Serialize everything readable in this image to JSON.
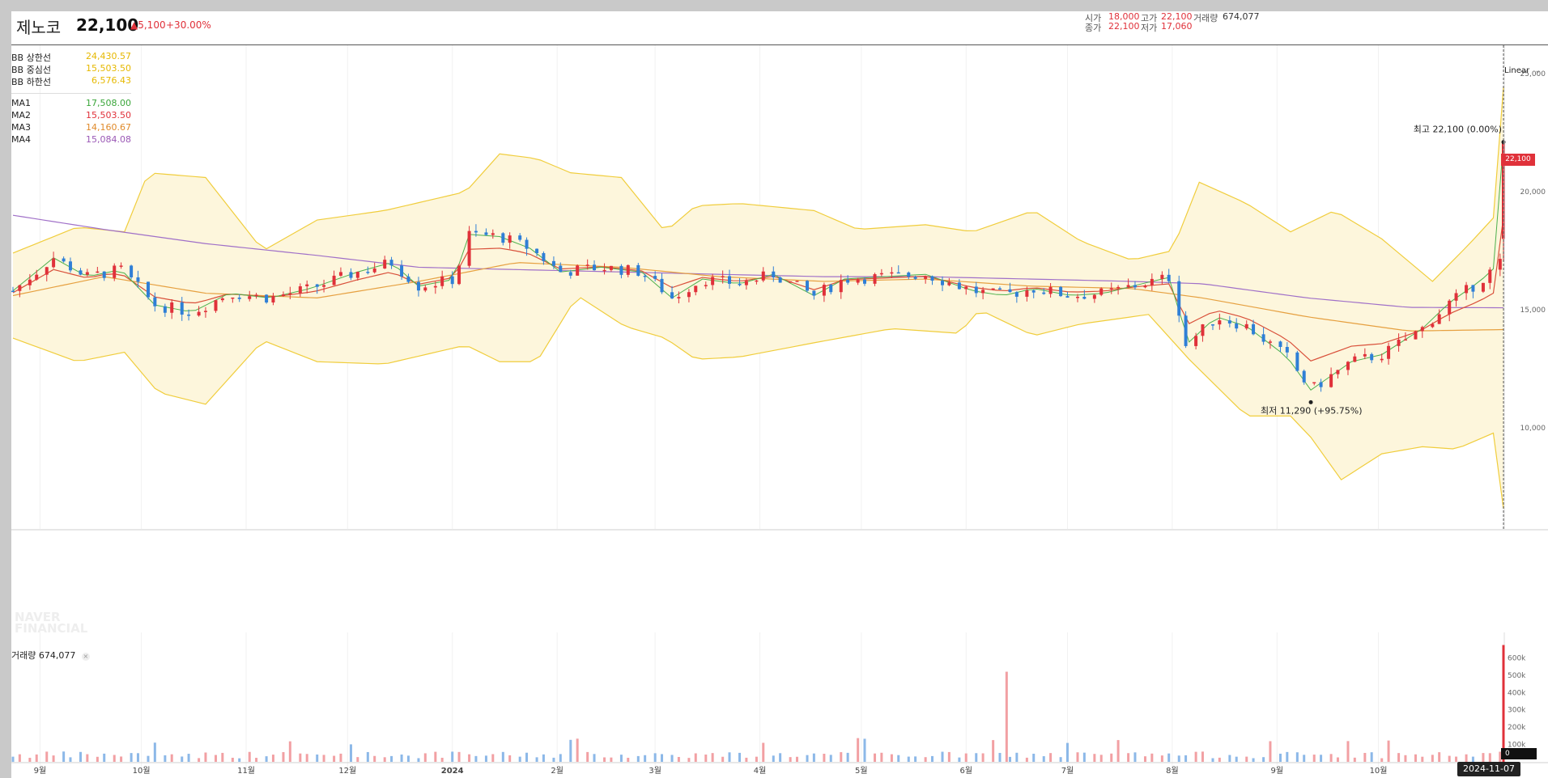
{
  "stock": {
    "name": "제노코",
    "price": "22,100",
    "change": "5,100",
    "change_pct": "+30.00%",
    "up_color": "#e0313a"
  },
  "ohlc": {
    "open_label": "시가",
    "open": "18,000",
    "high_label": "고가",
    "high": "22,100",
    "volume_label": "거래량",
    "volume": "674,077",
    "close_label": "종가",
    "close": "22,100",
    "low_label": "저가",
    "low": "17,060"
  },
  "indicators": {
    "bb_upper": {
      "label": "BB 상한선",
      "value": "24,430.57",
      "color": "#e6b800"
    },
    "bb_mid": {
      "label": "BB 중심선",
      "value": "15,503.50",
      "color": "#e6b800"
    },
    "bb_lower": {
      "label": "BB 하한선",
      "value": "6,576.43",
      "color": "#e6b800"
    },
    "ma1": {
      "label": "MA1",
      "value": "17,508.00",
      "color": "#3aa63a"
    },
    "ma2": {
      "label": "MA2",
      "value": "15,503.50",
      "color": "#e0313a"
    },
    "ma3": {
      "label": "MA3",
      "value": "14,160.67",
      "color": "#e08a2a"
    },
    "ma4": {
      "label": "MA4",
      "value": "15,084.08",
      "color": "#9b59b6"
    }
  },
  "scale_mode": "Linear",
  "volume_panel": {
    "label": "거래량",
    "value": "674,077"
  },
  "watermark": "NAVER FINANCIAL",
  "current_price_badge": "22,100",
  "volume_zero_badge": "0",
  "crosshair_date": "2024-11-07",
  "chart_data": {
    "type": "candlestick",
    "price_axis": {
      "ticks": [
        10000,
        15000,
        20000,
        25000
      ],
      "tick_labels": [
        "10,000",
        "15,000",
        "20,000",
        "25,000"
      ],
      "ylim": [
        6500,
        26500
      ]
    },
    "volume_axis": {
      "ticks": [
        100000,
        200000,
        300000,
        400000,
        500000,
        600000
      ],
      "tick_labels": [
        "100k",
        "200k",
        "300k",
        "400k",
        "500k",
        "600k"
      ],
      "ylim": [
        0,
        700000
      ]
    },
    "x_axis_labels": [
      "9월",
      "10월",
      "11월",
      "12월",
      "2024",
      "2월",
      "3월",
      "4월",
      "5월",
      "6월",
      "7월",
      "8월",
      "9월",
      "10월"
    ],
    "annotations": {
      "high": {
        "label": "최고",
        "value": "22,100",
        "pct": "(0.00%)"
      },
      "low": {
        "label": "최저",
        "value": "11,290",
        "pct": "(+95.75%)"
      }
    },
    "series_summary": {
      "last_close": 22100,
      "last_open": 18000,
      "last_high": 22100,
      "last_low": 17060,
      "period_high": 22100,
      "period_low": 11290,
      "last_volume": 674077,
      "largest_prior_volume_spike": 520000
    },
    "close_path": [
      {
        "d": "2023-08-24",
        "c": 15800
      },
      {
        "d": "2023-09-05",
        "c": 17200
      },
      {
        "d": "2023-09-15",
        "c": 16400
      },
      {
        "d": "2023-09-25",
        "c": 16700
      },
      {
        "d": "2023-10-05",
        "c": 15200
      },
      {
        "d": "2023-10-16",
        "c": 14900
      },
      {
        "d": "2023-10-27",
        "c": 15700
      },
      {
        "d": "2023-11-08",
        "c": 15500
      },
      {
        "d": "2023-11-20",
        "c": 15900
      },
      {
        "d": "2023-12-04",
        "c": 16600
      },
      {
        "d": "2023-12-14",
        "c": 17000
      },
      {
        "d": "2023-12-22",
        "c": 16000
      },
      {
        "d": "2024-01-02",
        "c": 16300
      },
      {
        "d": "2024-01-05",
        "c": 18200
      },
      {
        "d": "2024-01-15",
        "c": 18100
      },
      {
        "d": "2024-01-24",
        "c": 17600
      },
      {
        "d": "2024-02-02",
        "c": 16600
      },
      {
        "d": "2024-02-14",
        "c": 16800
      },
      {
        "d": "2024-02-26",
        "c": 16600
      },
      {
        "d": "2024-03-06",
        "c": 15500
      },
      {
        "d": "2024-03-15",
        "c": 16300
      },
      {
        "d": "2024-03-26",
        "c": 16100
      },
      {
        "d": "2024-04-05",
        "c": 16500
      },
      {
        "d": "2024-04-17",
        "c": 15600
      },
      {
        "d": "2024-04-26",
        "c": 16300
      },
      {
        "d": "2024-05-08",
        "c": 16400
      },
      {
        "d": "2024-05-20",
        "c": 16500
      },
      {
        "d": "2024-06-03",
        "c": 15800
      },
      {
        "d": "2024-06-12",
        "c": 15600
      },
      {
        "d": "2024-06-21",
        "c": 15900
      },
      {
        "d": "2024-07-02",
        "c": 15600
      },
      {
        "d": "2024-07-12",
        "c": 15700
      },
      {
        "d": "2024-07-23",
        "c": 16100
      },
      {
        "d": "2024-08-01",
        "c": 16400
      },
      {
        "d": "2024-08-05",
        "c": 13500
      },
      {
        "d": "2024-08-14",
        "c": 14700
      },
      {
        "d": "2024-08-23",
        "c": 14300
      },
      {
        "d": "2024-09-04",
        "c": 13000
      },
      {
        "d": "2024-09-11",
        "c": 11600
      },
      {
        "d": "2024-09-23",
        "c": 12800
      },
      {
        "d": "2024-10-02",
        "c": 13100
      },
      {
        "d": "2024-10-14",
        "c": 14200
      },
      {
        "d": "2024-10-22",
        "c": 15300
      },
      {
        "d": "2024-10-31",
        "c": 16200
      },
      {
        "d": "2024-11-06",
        "c": 17000
      },
      {
        "d": "2024-11-07",
        "c": 22100
      }
    ],
    "bb_upper_path": [
      {
        "d": "2023-08-24",
        "v": 17400
      },
      {
        "d": "2023-09-12",
        "v": 18500
      },
      {
        "d": "2023-09-26",
        "v": 18300
      },
      {
        "d": "2023-10-03",
        "v": 20800
      },
      {
        "d": "2023-10-20",
        "v": 20600
      },
      {
        "d": "2023-11-06",
        "v": 17500
      },
      {
        "d": "2023-11-22",
        "v": 18800
      },
      {
        "d": "2023-12-12",
        "v": 19200
      },
      {
        "d": "2024-01-05",
        "v": 20000
      },
      {
        "d": "2024-01-15",
        "v": 21600
      },
      {
        "d": "2024-01-26",
        "v": 21400
      },
      {
        "d": "2024-02-05",
        "v": 20800
      },
      {
        "d": "2024-02-20",
        "v": 20600
      },
      {
        "d": "2024-03-04",
        "v": 18300
      },
      {
        "d": "2024-03-13",
        "v": 19400
      },
      {
        "d": "2024-03-26",
        "v": 19500
      },
      {
        "d": "2024-04-17",
        "v": 19200
      },
      {
        "d": "2024-04-30",
        "v": 18400
      },
      {
        "d": "2024-05-20",
        "v": 18600
      },
      {
        "d": "2024-06-03",
        "v": 18300
      },
      {
        "d": "2024-06-21",
        "v": 19200
      },
      {
        "d": "2024-07-05",
        "v": 17900
      },
      {
        "d": "2024-07-20",
        "v": 17100
      },
      {
        "d": "2024-08-01",
        "v": 17500
      },
      {
        "d": "2024-08-09",
        "v": 20400
      },
      {
        "d": "2024-08-23",
        "v": 19500
      },
      {
        "d": "2024-09-05",
        "v": 18300
      },
      {
        "d": "2024-09-18",
        "v": 19200
      },
      {
        "d": "2024-10-02",
        "v": 18000
      },
      {
        "d": "2024-10-17",
        "v": 16200
      },
      {
        "d": "2024-10-28",
        "v": 17800
      },
      {
        "d": "2024-11-06",
        "v": 19200
      },
      {
        "d": "2024-11-07",
        "v": 24430
      }
    ],
    "bb_lower_path": [
      {
        "d": "2023-08-24",
        "v": 13800
      },
      {
        "d": "2023-09-12",
        "v": 12800
      },
      {
        "d": "2023-09-26",
        "v": 13200
      },
      {
        "d": "2023-10-06",
        "v": 11500
      },
      {
        "d": "2023-10-20",
        "v": 11000
      },
      {
        "d": "2023-11-06",
        "v": 13700
      },
      {
        "d": "2023-11-22",
        "v": 12800
      },
      {
        "d": "2023-12-12",
        "v": 12700
      },
      {
        "d": "2024-01-05",
        "v": 13500
      },
      {
        "d": "2024-01-15",
        "v": 12800
      },
      {
        "d": "2024-01-26",
        "v": 12800
      },
      {
        "d": "2024-02-07",
        "v": 15600
      },
      {
        "d": "2024-02-21",
        "v": 14300
      },
      {
        "d": "2024-03-04",
        "v": 13800
      },
      {
        "d": "2024-03-13",
        "v": 12900
      },
      {
        "d": "2024-03-26",
        "v": 13000
      },
      {
        "d": "2024-04-17",
        "v": 13600
      },
      {
        "d": "2024-05-10",
        "v": 14200
      },
      {
        "d": "2024-05-30",
        "v": 14000
      },
      {
        "d": "2024-06-05",
        "v": 15000
      },
      {
        "d": "2024-06-21",
        "v": 13900
      },
      {
        "d": "2024-07-05",
        "v": 14400
      },
      {
        "d": "2024-07-25",
        "v": 14800
      },
      {
        "d": "2024-08-06",
        "v": 12900
      },
      {
        "d": "2024-08-23",
        "v": 10500
      },
      {
        "d": "2024-09-05",
        "v": 10500
      },
      {
        "d": "2024-09-11",
        "v": 9600
      },
      {
        "d": "2024-09-20",
        "v": 7800
      },
      {
        "d": "2024-10-02",
        "v": 8900
      },
      {
        "d": "2024-10-14",
        "v": 9200
      },
      {
        "d": "2024-10-24",
        "v": 9100
      },
      {
        "d": "2024-11-06",
        "v": 9900
      },
      {
        "d": "2024-11-07",
        "v": 6576
      }
    ],
    "ma3_path": [
      {
        "d": "2023-08-24",
        "v": 15600
      },
      {
        "d": "2023-09-20",
        "v": 16400
      },
      {
        "d": "2023-10-20",
        "v": 15700
      },
      {
        "d": "2023-11-22",
        "v": 15500
      },
      {
        "d": "2023-12-22",
        "v": 16200
      },
      {
        "d": "2024-01-20",
        "v": 17000
      },
      {
        "d": "2024-02-20",
        "v": 16800
      },
      {
        "d": "2024-03-20",
        "v": 16400
      },
      {
        "d": "2024-04-20",
        "v": 16200
      },
      {
        "d": "2024-05-20",
        "v": 16300
      },
      {
        "d": "2024-06-20",
        "v": 16000
      },
      {
        "d": "2024-07-20",
        "v": 15900
      },
      {
        "d": "2024-08-10",
        "v": 15500
      },
      {
        "d": "2024-09-10",
        "v": 14700
      },
      {
        "d": "2024-10-10",
        "v": 14100
      },
      {
        "d": "2024-11-07",
        "v": 14160
      }
    ],
    "ma4_path": [
      {
        "d": "2023-08-24",
        "v": 19000
      },
      {
        "d": "2023-09-20",
        "v": 18400
      },
      {
        "d": "2023-10-20",
        "v": 17800
      },
      {
        "d": "2023-11-22",
        "v": 17300
      },
      {
        "d": "2023-12-22",
        "v": 16800
      },
      {
        "d": "2024-01-20",
        "v": 16700
      },
      {
        "d": "2024-02-20",
        "v": 16600
      },
      {
        "d": "2024-03-20",
        "v": 16500
      },
      {
        "d": "2024-04-20",
        "v": 16400
      },
      {
        "d": "2024-05-20",
        "v": 16400
      },
      {
        "d": "2024-06-20",
        "v": 16300
      },
      {
        "d": "2024-07-20",
        "v": 16200
      },
      {
        "d": "2024-08-10",
        "v": 16100
      },
      {
        "d": "2024-09-10",
        "v": 15500
      },
      {
        "d": "2024-10-10",
        "v": 15100
      },
      {
        "d": "2024-11-07",
        "v": 15084
      }
    ]
  }
}
